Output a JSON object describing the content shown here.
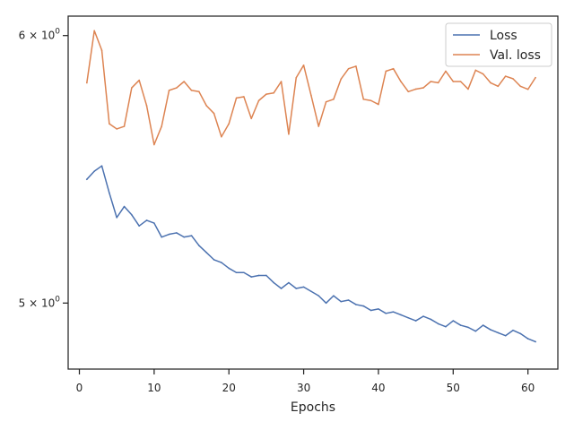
{
  "chart_data": {
    "type": "line",
    "title": "",
    "xlabel": "Epochs",
    "ylabel": "",
    "xlim": [
      -1.5,
      64
    ],
    "ylim": [
      4.78,
      6.08
    ],
    "yscale": "log",
    "grid": false,
    "legend_placement": "top-right",
    "xticks": [
      0,
      10,
      20,
      30,
      40,
      50,
      60
    ],
    "xtick_labels": [
      "0",
      "10",
      "20",
      "30",
      "40",
      "50",
      "60"
    ],
    "yticks": [
      {
        "value": 5,
        "label_base": "5",
        "label_mult": "×",
        "label_pow_base": "10",
        "label_exp": "0"
      },
      {
        "value": 6,
        "label_base": "6",
        "label_mult": "×",
        "label_pow_base": "10",
        "label_exp": "0"
      }
    ],
    "x": [
      1,
      2,
      3,
      4,
      5,
      6,
      7,
      8,
      9,
      10,
      11,
      12,
      13,
      14,
      15,
      16,
      17,
      18,
      19,
      20,
      21,
      22,
      23,
      24,
      25,
      26,
      27,
      28,
      29,
      30,
      31,
      32,
      33,
      34,
      35,
      36,
      37,
      38,
      39,
      40,
      41,
      42,
      43,
      44,
      45,
      46,
      47,
      48,
      49,
      50,
      51,
      52,
      53,
      54,
      55,
      56,
      57,
      58,
      59,
      60,
      61
    ],
    "series": [
      {
        "name": "Loss",
        "color": "#4c72b0",
        "values": [
          5.44,
          5.47,
          5.49,
          5.39,
          5.3,
          5.34,
          5.31,
          5.27,
          5.29,
          5.28,
          5.23,
          5.24,
          5.245,
          5.23,
          5.235,
          5.2,
          5.175,
          5.15,
          5.14,
          5.12,
          5.105,
          5.105,
          5.09,
          5.095,
          5.095,
          5.07,
          5.05,
          5.07,
          5.05,
          5.055,
          5.04,
          5.025,
          5.0,
          5.025,
          5.005,
          5.01,
          4.995,
          4.99,
          4.975,
          4.98,
          4.965,
          4.97,
          4.96,
          4.95,
          4.94,
          4.955,
          4.945,
          4.93,
          4.92,
          4.94,
          4.925,
          4.918,
          4.905,
          4.925,
          4.91,
          4.9,
          4.89,
          4.908,
          4.897,
          4.88,
          4.87
        ]
      },
      {
        "name": "Val. loss",
        "color": "#dd8452",
        "values": [
          5.81,
          6.02,
          5.94,
          5.65,
          5.63,
          5.64,
          5.79,
          5.82,
          5.72,
          5.57,
          5.64,
          5.78,
          5.79,
          5.815,
          5.78,
          5.775,
          5.72,
          5.69,
          5.6,
          5.65,
          5.75,
          5.755,
          5.67,
          5.74,
          5.765,
          5.77,
          5.815,
          5.61,
          5.83,
          5.88,
          5.76,
          5.64,
          5.735,
          5.745,
          5.825,
          5.866,
          5.876,
          5.745,
          5.74,
          5.725,
          5.856,
          5.866,
          5.815,
          5.775,
          5.785,
          5.79,
          5.815,
          5.81,
          5.856,
          5.815,
          5.815,
          5.785,
          5.86,
          5.845,
          5.81,
          5.796,
          5.836,
          5.826,
          5.796,
          5.784,
          5.83
        ]
      }
    ]
  }
}
